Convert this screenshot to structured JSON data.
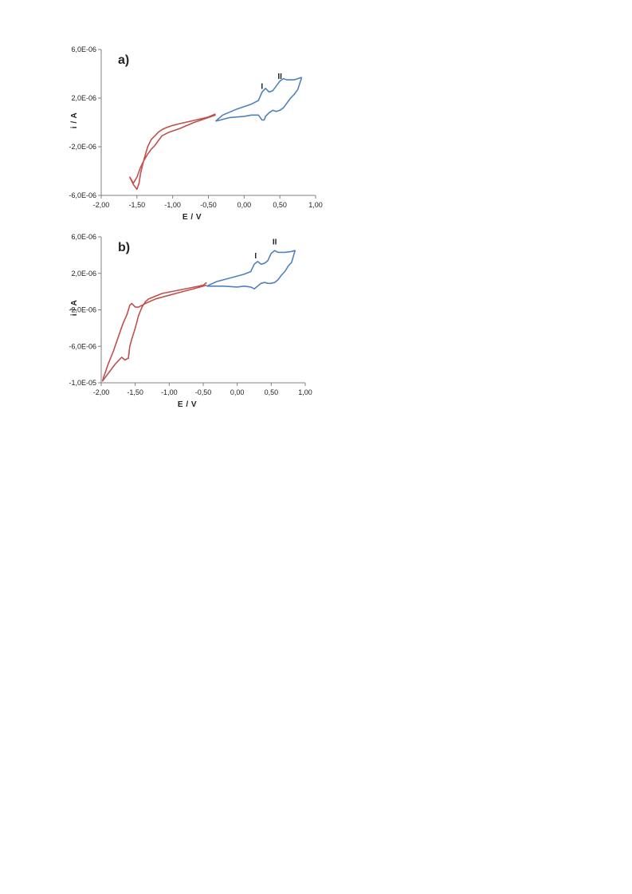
{
  "colors": {
    "cathodic_curve": "#c0504d",
    "anodic_curve": "#4f81bd",
    "axis": "#808080"
  },
  "chart_data": [
    {
      "type": "line",
      "panel_label": "a)",
      "xlabel": "E / V",
      "ylabel": "i / A",
      "xlim": [
        -2.0,
        1.0
      ],
      "ylim": [
        -6e-06,
        6e-06
      ],
      "x_ticks": [
        -2.0,
        -1.5,
        -1.0,
        -0.5,
        0.0,
        0.5,
        1.0
      ],
      "x_tick_labels": [
        "-2,00",
        "-1,50",
        "-1,00",
        "-0,50",
        "0,00",
        "0,50",
        "1,00"
      ],
      "y_ticks": [
        6e-06,
        2e-06,
        -2e-06,
        -6e-06
      ],
      "y_tick_labels": [
        "6,0E-06",
        "2,0E-06",
        "-2,0E-06",
        "-6,0E-06"
      ],
      "grid": false,
      "annotations": [
        {
          "text": "I",
          "x": 0.25,
          "y": 2.5e-06
        },
        {
          "text": "II",
          "x": 0.5,
          "y": 3.3e-06
        }
      ],
      "series": [
        {
          "color": "#c0504d",
          "x": [
            -0.4,
            -0.5,
            -0.7,
            -0.9,
            -1.05,
            -1.15,
            -1.2,
            -1.25,
            -1.3,
            -1.35,
            -1.4,
            -1.45,
            -1.5,
            -1.55,
            -1.6,
            -1.55,
            -1.5,
            -1.47,
            -1.45,
            -1.4,
            -1.35,
            -1.3,
            -1.25,
            -1.2,
            -1.15,
            -1.1,
            -1.0,
            -0.9,
            -0.75,
            -0.6,
            -0.5,
            -0.4
          ],
          "y": [
            6e-07,
            4e-07,
            0.0,
            -5e-07,
            -8e-07,
            -1.1e-06,
            -1.5e-06,
            -1.9e-06,
            -2.2e-06,
            -2.6e-06,
            -3.1e-06,
            -3.7e-06,
            -4.5e-06,
            -5e-06,
            -4.5e-06,
            -5.1e-06,
            -5.5e-06,
            -5e-06,
            -4.2e-06,
            -3e-06,
            -2e-06,
            -1.4e-06,
            -1.1e-06,
            -8e-07,
            -6e-07,
            -4.5e-07,
            -2.5e-07,
            -1e-07,
            1e-07,
            3e-07,
            4.5e-07,
            7e-07
          ]
        },
        {
          "color": "#4f81bd",
          "x": [
            -0.4,
            -0.3,
            -0.1,
            0.1,
            0.2,
            0.25,
            0.3,
            0.35,
            0.4,
            0.45,
            0.5,
            0.55,
            0.6,
            0.7,
            0.8,
            0.8,
            0.75,
            0.7,
            0.65,
            0.6,
            0.55,
            0.5,
            0.45,
            0.4,
            0.35,
            0.3,
            0.28,
            0.25,
            0.2,
            0.1,
            0.0,
            -0.2,
            -0.4
          ],
          "y": [
            1e-07,
            6e-07,
            1.1e-06,
            1.5e-06,
            1.8e-06,
            2.5e-06,
            2.8e-06,
            2.5e-06,
            2.6e-06,
            3e-06,
            3.4e-06,
            3.6e-06,
            3.5e-06,
            3.5e-06,
            3.7e-06,
            3.6e-06,
            2.7e-06,
            2.3e-06,
            2e-06,
            1.6e-06,
            1.2e-06,
            1e-06,
            9e-07,
            1e-06,
            8e-07,
            5e-07,
            2e-07,
            2e-07,
            6e-07,
            6e-07,
            5e-07,
            4e-07,
            1e-07
          ]
        }
      ]
    },
    {
      "type": "line",
      "panel_label": "b)",
      "xlabel": "E / V",
      "ylabel": "i / A",
      "xlim": [
        -2.0,
        1.0
      ],
      "ylim": [
        -1e-05,
        6e-06
      ],
      "x_ticks": [
        -2.0,
        -1.5,
        -1.0,
        -0.5,
        0.0,
        0.5,
        1.0
      ],
      "x_tick_labels": [
        "-2,00",
        "-1,50",
        "-1,00",
        "-0,50",
        "0,00",
        "0,50",
        "1,00"
      ],
      "y_ticks": [
        6e-06,
        2e-06,
        -2e-06,
        -6e-06,
        -1e-05
      ],
      "y_tick_labels": [
        "6,0E-06",
        "2,0E-06",
        "-2,0E-06",
        "-6,0E-06",
        "-1,0E-05"
      ],
      "grid": false,
      "annotations": [
        {
          "text": "I",
          "x": 0.27,
          "y": 3.3e-06
        },
        {
          "text": "II",
          "x": 0.55,
          "y": 4.8e-06
        }
      ],
      "series": [
        {
          "color": "#c0504d",
          "x": [
            -0.45,
            -0.6,
            -0.8,
            -1.0,
            -1.2,
            -1.35,
            -1.45,
            -1.5,
            -1.55,
            -1.58,
            -1.62,
            -1.68,
            -1.75,
            -1.82,
            -1.9,
            -1.97,
            -1.98,
            -1.9,
            -1.8,
            -1.7,
            -1.65,
            -1.6,
            -1.58,
            -1.55,
            -1.5,
            -1.45,
            -1.4,
            -1.35,
            -1.3,
            -1.2,
            -1.1,
            -0.9,
            -0.7,
            -0.5,
            -0.45
          ],
          "y": [
            7e-07,
            4e-07,
            0.0,
            -4e-07,
            -8e-07,
            -1.3e-06,
            -1.7e-06,
            -1.7e-06,
            -1.3e-06,
            -1.5e-06,
            -2.5e-06,
            -3.5e-06,
            -5e-06,
            -6.5e-06,
            -8e-06,
            -9.5e-06,
            -9.8e-06,
            -9e-06,
            -8e-06,
            -7.2e-06,
            -7.5e-06,
            -7.3e-06,
            -6e-06,
            -5.2e-06,
            -4e-06,
            -2.6e-06,
            -1.7e-06,
            -1.1e-06,
            -8e-07,
            -5e-07,
            -2e-07,
            1e-07,
            4e-07,
            7e-07,
            1e-06
          ]
        },
        {
          "color": "#4f81bd",
          "x": [
            -0.45,
            -0.3,
            -0.1,
            0.1,
            0.2,
            0.25,
            0.3,
            0.35,
            0.4,
            0.45,
            0.5,
            0.55,
            0.6,
            0.7,
            0.8,
            0.85,
            0.8,
            0.75,
            0.7,
            0.65,
            0.6,
            0.55,
            0.5,
            0.45,
            0.4,
            0.35,
            0.3,
            0.25,
            0.2,
            0.1,
            0.0,
            -0.2,
            -0.45
          ],
          "y": [
            6e-07,
            1.1e-06,
            1.5e-06,
            1.9e-06,
            2.2e-06,
            3e-06,
            3.3e-06,
            3e-06,
            3.1e-06,
            3.4e-06,
            4.2e-06,
            4.5e-06,
            4.3e-06,
            4.3e-06,
            4.4e-06,
            4.5e-06,
            3.2e-06,
            2.8e-06,
            2.2e-06,
            1.8e-06,
            1.3e-06,
            1e-06,
            9e-07,
            9e-07,
            1e-06,
            9e-07,
            6e-07,
            3e-07,
            5e-07,
            6e-07,
            5e-07,
            6e-07,
            6e-07
          ]
        }
      ]
    }
  ]
}
